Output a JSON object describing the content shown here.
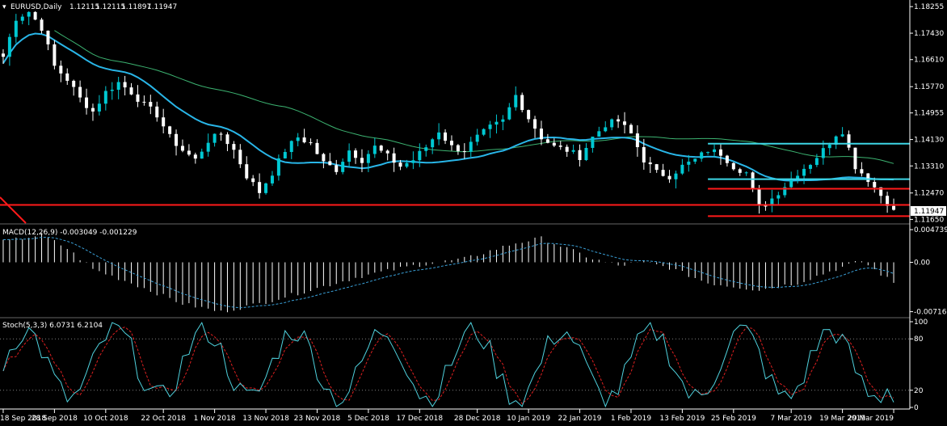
{
  "symbol": "EURUSD,Daily",
  "ohlc": [
    "1.12115",
    "1.12115",
    "1.11897",
    "1.11947"
  ],
  "current_price_label": "1.11947",
  "colors": {
    "background": "#000000",
    "bull_candle": "#00c8d2",
    "bear_candle": "#ffffff",
    "ma_fast": "#29b6e8",
    "ma_slow": "#3cb371",
    "level_line": "#ff1a1a",
    "channel_line": "#3dd6e6",
    "macd_hist": "#ffffff",
    "macd_signal": "#3aa0d8",
    "stoch_main": "#4fd2de",
    "stoch_signal": "#e02020",
    "axis_text": "#ffffff",
    "grid": "#ffffff"
  },
  "chart_data": [
    {
      "type": "candlestick",
      "title": "EURUSD,Daily",
      "y_ticks": [
        "1.18255",
        "1.17430",
        "1.16610",
        "1.15770",
        "1.14955",
        "1.14130",
        "1.13310",
        "1.12470",
        "1.11650"
      ],
      "ylim": [
        1.1156,
        1.1836
      ],
      "x_labels": [
        "18 Sep 2018",
        "28 Sep 2018",
        "10 Oct 2018",
        "22 Oct 2018",
        "1 Nov 2018",
        "13 Nov 2018",
        "23 Nov 2018",
        "5 Dec 2018",
        "17 Dec 2018",
        "28 Dec 2018",
        "10 Jan 2019",
        "22 Jan 2019",
        "1 Feb 2019",
        "13 Feb 2019",
        "25 Feb 2019",
        "7 Mar 2019",
        "19 Mar 2019",
        "29 Mar 2019"
      ],
      "bars": 140,
      "close_anchors": [
        [
          0,
          1.167
        ],
        [
          2,
          1.179
        ],
        [
          4,
          1.181
        ],
        [
          6,
          1.176
        ],
        [
          8,
          1.164
        ],
        [
          10,
          1.16
        ],
        [
          12,
          1.154
        ],
        [
          14,
          1.15
        ],
        [
          16,
          1.156
        ],
        [
          18,
          1.159
        ],
        [
          20,
          1.156
        ],
        [
          22,
          1.152
        ],
        [
          24,
          1.149
        ],
        [
          26,
          1.142
        ],
        [
          28,
          1.138
        ],
        [
          30,
          1.135
        ],
        [
          32,
          1.141
        ],
        [
          34,
          1.143
        ],
        [
          36,
          1.138
        ],
        [
          38,
          1.13
        ],
        [
          40,
          1.125
        ],
        [
          42,
          1.131
        ],
        [
          44,
          1.138
        ],
        [
          46,
          1.142
        ],
        [
          48,
          1.14
        ],
        [
          50,
          1.134
        ],
        [
          52,
          1.132
        ],
        [
          54,
          1.138
        ],
        [
          56,
          1.135
        ],
        [
          58,
          1.139
        ],
        [
          60,
          1.136
        ],
        [
          62,
          1.133
        ],
        [
          64,
          1.135
        ],
        [
          66,
          1.139
        ],
        [
          68,
          1.144
        ],
        [
          70,
          1.139
        ],
        [
          72,
          1.138
        ],
        [
          74,
          1.142
        ],
        [
          76,
          1.145
        ],
        [
          78,
          1.147
        ],
        [
          80,
          1.155
        ],
        [
          82,
          1.148
        ],
        [
          84,
          1.142
        ],
        [
          86,
          1.139
        ],
        [
          88,
          1.138
        ],
        [
          90,
          1.136
        ],
        [
          92,
          1.142
        ],
        [
          94,
          1.146
        ],
        [
          96,
          1.147
        ],
        [
          98,
          1.143
        ],
        [
          100,
          1.135
        ],
        [
          102,
          1.131
        ],
        [
          104,
          1.13
        ],
        [
          106,
          1.133
        ],
        [
          108,
          1.135
        ],
        [
          110,
          1.138
        ],
        [
          112,
          1.137
        ],
        [
          114,
          1.133
        ],
        [
          116,
          1.131
        ],
        [
          118,
          1.12
        ],
        [
          120,
          1.123
        ],
        [
          122,
          1.127
        ],
        [
          124,
          1.131
        ],
        [
          126,
          1.134
        ],
        [
          128,
          1.138
        ],
        [
          130,
          1.143
        ],
        [
          131,
          1.144
        ],
        [
          133,
          1.133
        ],
        [
          135,
          1.129
        ],
        [
          137,
          1.124
        ],
        [
          139,
          1.1195
        ]
      ],
      "horizontal_lines": [
        {
          "price": 1.14,
          "color": "channel",
          "from_bar": 110
        },
        {
          "price": 1.129,
          "color": "channel",
          "from_bar": 110
        },
        {
          "price": 1.126,
          "color": "level",
          "from_bar": 110
        },
        {
          "price": 1.121,
          "color": "level",
          "from_bar": 0
        },
        {
          "price": 1.1175,
          "color": "level",
          "from_bar": 110
        }
      ]
    },
    {
      "type": "histogram",
      "title": "MACD(12,26,9) -0.003049 -0.001229",
      "y_ticks": [
        "0.004739",
        "0.00",
        "-0.007165"
      ],
      "ylim": [
        -0.0078,
        0.0051
      ],
      "hist_anchors": [
        [
          0,
          0.003
        ],
        [
          6,
          0.004
        ],
        [
          10,
          0.002
        ],
        [
          14,
          -0.001
        ],
        [
          20,
          -0.003
        ],
        [
          28,
          -0.006
        ],
        [
          34,
          -0.0072
        ],
        [
          40,
          -0.006
        ],
        [
          48,
          -0.004
        ],
        [
          56,
          -0.002
        ],
        [
          64,
          -0.0005
        ],
        [
          72,
          0.0005
        ],
        [
          80,
          0.0028
        ],
        [
          84,
          0.0035
        ],
        [
          88,
          0.002
        ],
        [
          92,
          0.0005
        ],
        [
          96,
          -0.0005
        ],
        [
          100,
          0.0
        ],
        [
          104,
          -0.0008
        ],
        [
          110,
          -0.003
        ],
        [
          118,
          -0.004
        ],
        [
          124,
          -0.003
        ],
        [
          130,
          -0.001
        ],
        [
          134,
          0.0002
        ],
        [
          139,
          -0.003
        ]
      ]
    },
    {
      "type": "line",
      "title": "Stoch(5,3,3) 6.0731 6.2104",
      "y_ticks": [
        "100",
        "80",
        "20",
        "0"
      ],
      "ylim": [
        0,
        100
      ]
    }
  ]
}
